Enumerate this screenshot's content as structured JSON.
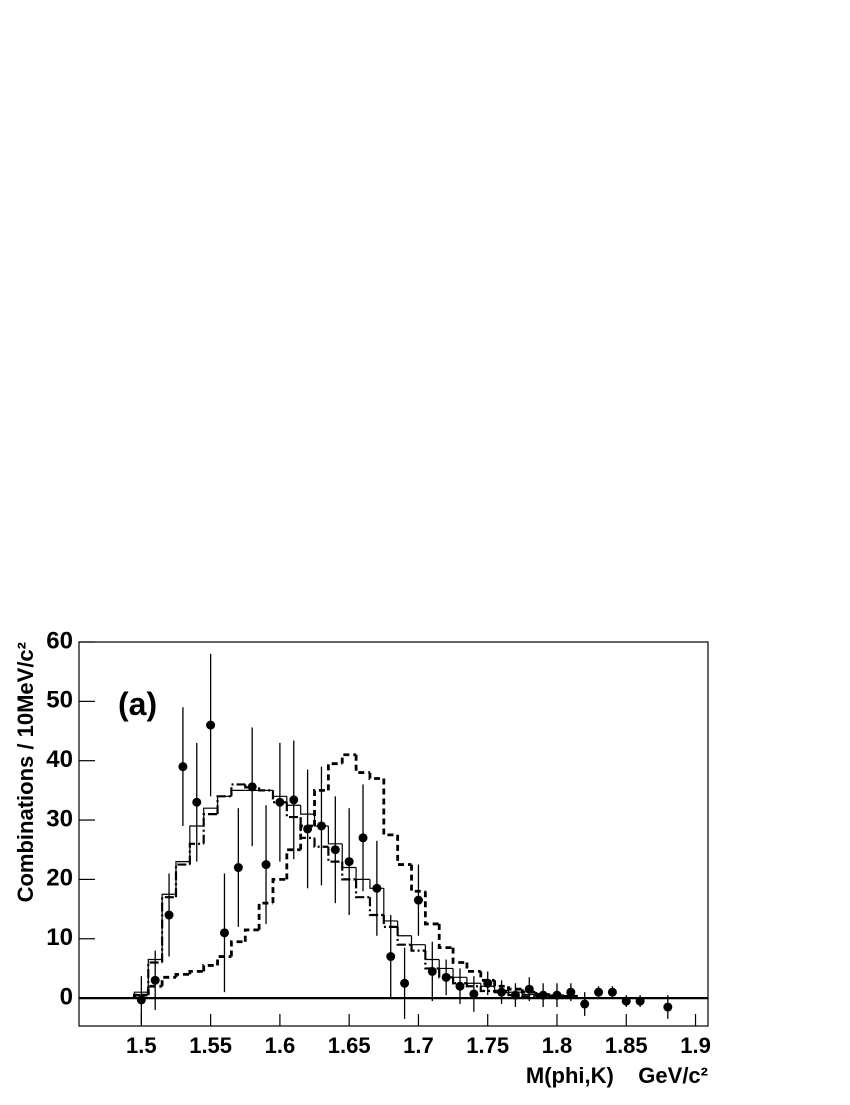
{
  "chart_data": {
    "type": "histogram",
    "annotation": "(a)",
    "y_label": "Combinations / 10MeV/c²",
    "x_label": "M(phi,K)    GeV/c²",
    "xlim": [
      1.455,
      1.909
    ],
    "ylim": [
      -4.7,
      60
    ],
    "xticks": [
      1.5,
      1.55,
      1.6,
      1.65,
      1.7,
      1.75,
      1.8,
      1.85,
      1.9
    ],
    "yticks": [
      0,
      10,
      20,
      30,
      40,
      50,
      60
    ],
    "zero_line": true,
    "bins": [
      1.495,
      1.505,
      1.515,
      1.525,
      1.535,
      1.545,
      1.555,
      1.565,
      1.575,
      1.585,
      1.595,
      1.605,
      1.615,
      1.625,
      1.635,
      1.645,
      1.655,
      1.665,
      1.675,
      1.685,
      1.695,
      1.705,
      1.715,
      1.725,
      1.735,
      1.745,
      1.755,
      1.765,
      1.775,
      1.785,
      1.795,
      1.805,
      1.815
    ],
    "series": [
      {
        "style": "solid",
        "color": "#000000",
        "values": [
          1,
          6.5,
          17.5,
          23,
          29,
          32,
          34,
          35,
          35,
          35,
          34,
          32.5,
          31,
          29,
          26,
          22,
          20,
          18.5,
          13,
          10.5,
          9,
          6.5,
          5,
          3.5,
          2.5,
          2,
          1.3,
          1,
          0.6,
          0.5,
          0.3,
          0.2
        ]
      },
      {
        "style": "dashdot",
        "color": "#000000",
        "values": [
          0.5,
          6,
          17,
          22.5,
          26,
          31,
          34,
          36,
          35.5,
          35,
          33,
          30.5,
          27,
          25.5,
          23,
          20,
          17,
          14,
          12,
          9,
          8,
          5,
          3.5,
          2.5,
          2,
          1.2,
          1,
          0.5,
          0.3,
          0.2,
          0.1,
          0.1
        ]
      },
      {
        "style": "dashed",
        "color": "#000000",
        "values": [
          0.5,
          2,
          3.5,
          4,
          4.5,
          5.5,
          7,
          9.5,
          11.5,
          16,
          20,
          25,
          29,
          35,
          39.5,
          41,
          38,
          37,
          27.5,
          22.5,
          18,
          12.5,
          8.5,
          6,
          4.5,
          3,
          2,
          1.5,
          1,
          0.6,
          0.4,
          0.3
        ]
      }
    ],
    "points": {
      "color": "#000000",
      "x": [
        1.5,
        1.51,
        1.52,
        1.53,
        1.54,
        1.55,
        1.56,
        1.57,
        1.58,
        1.59,
        1.6,
        1.61,
        1.62,
        1.63,
        1.64,
        1.65,
        1.66,
        1.67,
        1.68,
        1.69,
        1.7,
        1.71,
        1.72,
        1.73,
        1.74,
        1.75,
        1.76,
        1.77,
        1.78,
        1.79,
        1.8,
        1.81,
        1.82,
        1.83,
        1.84,
        1.85,
        1.86,
        1.88
      ],
      "values": [
        -0.3,
        3,
        14,
        39,
        33,
        46,
        11,
        22,
        35.6,
        22.5,
        33,
        33.4,
        28.5,
        29,
        25,
        23,
        27,
        18.5,
        7,
        2.5,
        16.5,
        4.5,
        3.5,
        2,
        0.7,
        2.5,
        1,
        0.5,
        1.5,
        0.5,
        0.5,
        1,
        -1,
        1,
        1,
        -0.5,
        -0.5,
        -1.5
      ],
      "errors": [
        4,
        5,
        7,
        10,
        10,
        12,
        10,
        10,
        10,
        10,
        10,
        10,
        10,
        10,
        9,
        9,
        9,
        8,
        7,
        6,
        6,
        5,
        3,
        3,
        3,
        2,
        2,
        2,
        2,
        2,
        2,
        1.5,
        2,
        1,
        1,
        1,
        1,
        2
      ]
    }
  }
}
